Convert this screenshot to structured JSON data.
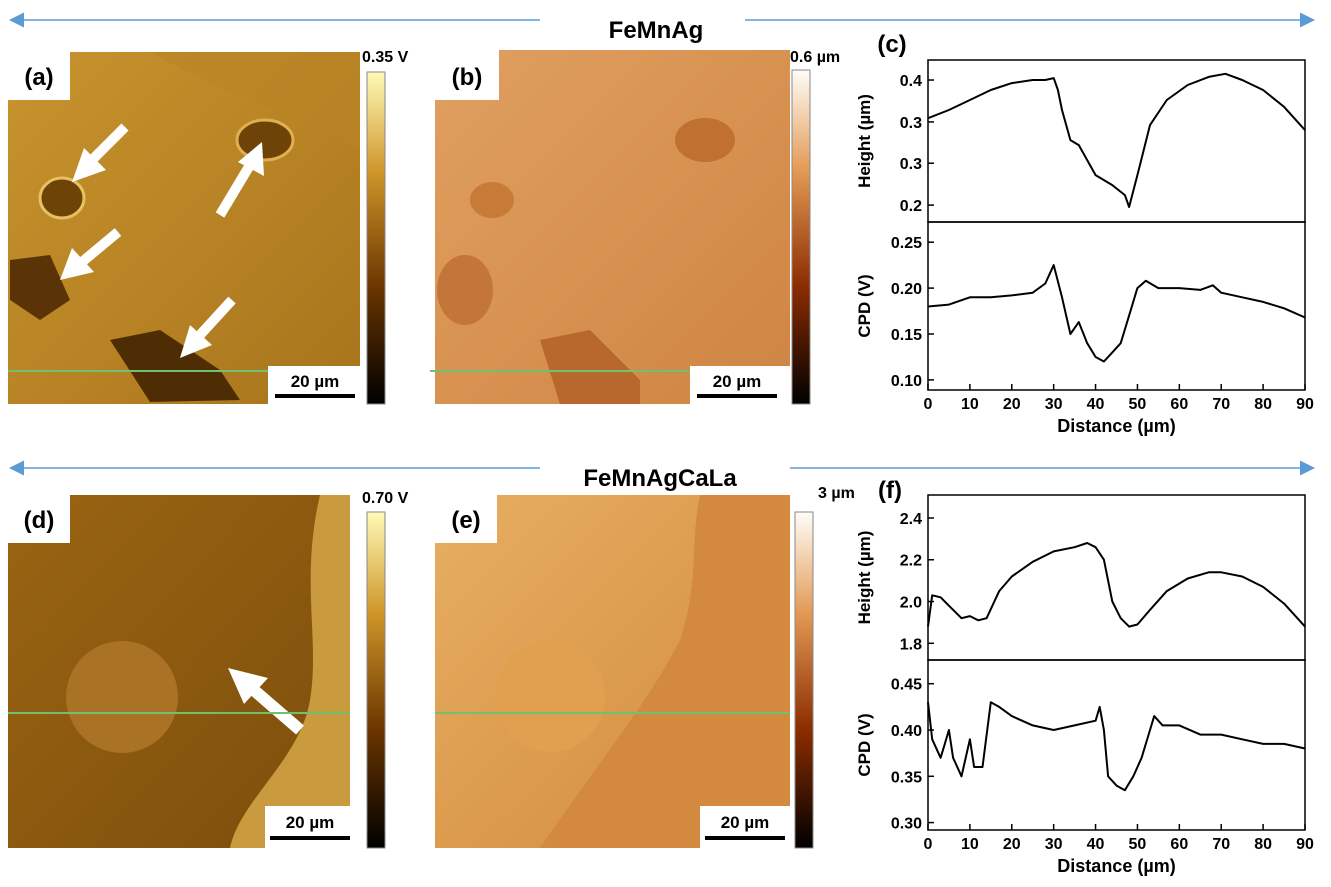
{
  "headers": [
    "FeMnAg",
    "FeMnAgCaLa"
  ],
  "panels": [
    {
      "label": "(a)",
      "colorbar_label": "0.35 V",
      "scale_bar": "20 µm"
    },
    {
      "label": "(b)",
      "colorbar_label": "0.6 µm",
      "scale_bar": "20 µm"
    },
    {
      "label": "(d)",
      "colorbar_label": "0.70 V",
      "scale_bar": "20 µm"
    },
    {
      "label": "(e)",
      "colorbar_label": "3 µm",
      "scale_bar": "20 µm"
    }
  ],
  "plot_labels": [
    "(c)",
    "(f)"
  ],
  "chart_data": [
    {
      "type": "line",
      "ylabel": "Height (µm)",
      "color": "#000000",
      "x": [
        0,
        5,
        10,
        15,
        20,
        25,
        28,
        30,
        31,
        32,
        34,
        36,
        38,
        40,
        44,
        47,
        48,
        50,
        53,
        57,
        62,
        67,
        71,
        75,
        80,
        85,
        90
      ],
      "values": [
        0.339,
        0.352,
        0.368,
        0.384,
        0.395,
        0.4,
        0.4,
        0.403,
        0.384,
        0.352,
        0.304,
        0.296,
        0.272,
        0.248,
        0.232,
        0.216,
        0.197,
        0.248,
        0.328,
        0.368,
        0.392,
        0.405,
        0.41,
        0.4,
        0.384,
        0.357,
        0.32
      ],
      "xlim": [
        0,
        90
      ],
      "ylim": [
        0.173,
        0.432
      ],
      "yticks": [
        0.4,
        {
          "value": 0.333,
          "label": "0.3"
        },
        {
          "value": 0.267,
          "label": "0.3"
        },
        0.2
      ]
    },
    {
      "type": "line",
      "ylabel": "CPD (V)",
      "xlabel": "Distance (µm)",
      "color": "#000000",
      "x": [
        0,
        5,
        10,
        15,
        20,
        25,
        28,
        30,
        32,
        34,
        36,
        38,
        40,
        42,
        44,
        46,
        48,
        50,
        52,
        55,
        60,
        65,
        68,
        70,
        75,
        80,
        85,
        90
      ],
      "values": [
        0.18,
        0.182,
        0.19,
        0.19,
        0.192,
        0.195,
        0.205,
        0.225,
        0.19,
        0.15,
        0.163,
        0.14,
        0.125,
        0.12,
        0.13,
        0.14,
        0.17,
        0.2,
        0.208,
        0.2,
        0.2,
        0.198,
        0.203,
        0.195,
        0.19,
        0.185,
        0.178,
        0.168
      ],
      "xlim": [
        0,
        90
      ],
      "ylim": [
        0.089,
        0.272
      ],
      "xticks": [
        0,
        10,
        20,
        30,
        40,
        50,
        60,
        70,
        80,
        90
      ],
      "yticks": [
        {
          "value": 0.25,
          "label": "0.25"
        },
        {
          "value": 0.2,
          "label": "0.20"
        },
        0.15,
        {
          "value": 0.1,
          "label": "0.10"
        }
      ]
    },
    {
      "type": "line",
      "ylabel": "Height (µm)",
      "color": "#000000",
      "x": [
        0,
        1,
        3,
        5,
        8,
        10,
        12,
        14,
        17,
        20,
        25,
        30,
        35,
        38,
        40,
        42,
        44,
        46,
        48,
        50,
        53,
        57,
        62,
        67,
        70,
        75,
        80,
        85,
        90
      ],
      "values": [
        1.88,
        2.03,
        2.02,
        1.98,
        1.92,
        1.93,
        1.91,
        1.92,
        2.05,
        2.12,
        2.19,
        2.24,
        2.26,
        2.28,
        2.26,
        2.2,
        2.0,
        1.92,
        1.88,
        1.89,
        1.96,
        2.05,
        2.11,
        2.14,
        2.14,
        2.12,
        2.07,
        1.99,
        1.88
      ],
      "xlim": [
        0,
        90
      ],
      "ylim": [
        1.72,
        2.51
      ],
      "yticks": [
        2.4,
        2.2,
        {
          "value": 2.0,
          "label": "2.0"
        },
        1.8
      ]
    },
    {
      "type": "line",
      "ylabel": "CPD (V)",
      "xlabel": "Distance (µm)",
      "color": "#000000",
      "x": [
        0,
        1,
        3,
        4,
        5,
        6,
        8,
        10,
        11,
        13,
        15,
        17,
        20,
        25,
        30,
        35,
        40,
        41,
        42,
        43,
        45,
        47,
        49,
        51,
        53,
        54,
        56,
        60,
        65,
        70,
        75,
        80,
        85,
        90
      ],
      "values": [
        0.43,
        0.39,
        0.37,
        0.385,
        0.4,
        0.37,
        0.35,
        0.39,
        0.36,
        0.36,
        0.43,
        0.425,
        0.415,
        0.405,
        0.4,
        0.405,
        0.41,
        0.425,
        0.4,
        0.35,
        0.34,
        0.335,
        0.35,
        0.37,
        0.4,
        0.415,
        0.405,
        0.405,
        0.395,
        0.395,
        0.39,
        0.385,
        0.385,
        0.38
      ],
      "xlim": [
        0,
        90
      ],
      "ylim": [
        0.292,
        0.4756
      ],
      "xticks": [
        0,
        10,
        20,
        30,
        40,
        50,
        60,
        70,
        80,
        90
      ],
      "yticks": [
        0.45,
        {
          "value": 0.4,
          "label": "0.40"
        },
        0.35,
        {
          "value": 0.3,
          "label": "0.30"
        }
      ]
    }
  ]
}
